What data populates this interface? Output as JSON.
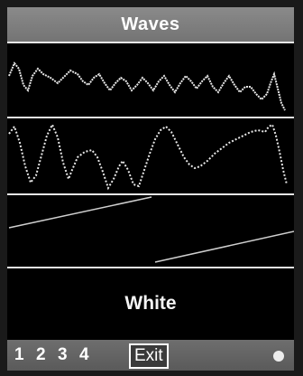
{
  "title": "Waves",
  "panels": {
    "noise_label": "White"
  },
  "softkeys": {
    "key1": "1",
    "key2": "2",
    "key3": "3",
    "key4": "4",
    "exit": "Exit"
  },
  "colors": {
    "background": "#000000",
    "title_bar": "#7f7f7f",
    "trace": "#e8e8e8",
    "separator": "#e6e6e6"
  },
  "icons": {
    "indicator": "status-dot-icon"
  }
}
